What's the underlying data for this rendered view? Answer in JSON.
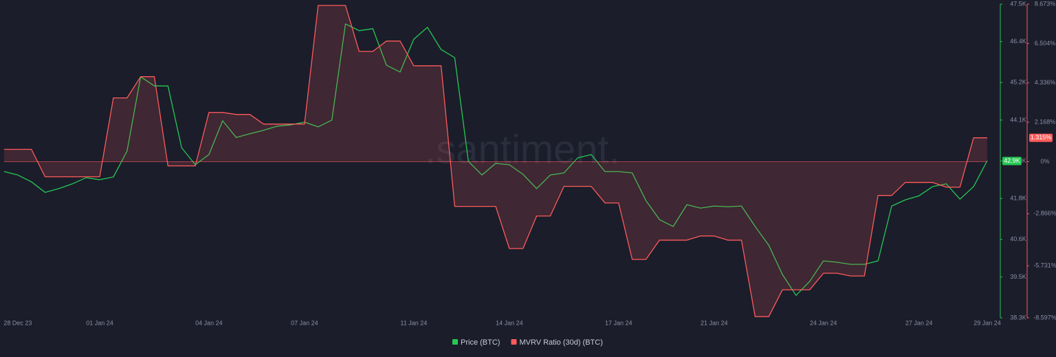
{
  "chart_data": {
    "type": "line",
    "watermark": ".santiment.",
    "categories": [
      null,
      "28 Dec 23",
      null,
      null,
      null,
      null,
      null,
      "01 Jan 24",
      null,
      null,
      null,
      null,
      null,
      null,
      null,
      "04 Jan 24",
      null,
      null,
      null,
      null,
      null,
      null,
      "07 Jan 24",
      null,
      null,
      null,
      null,
      null,
      null,
      null,
      "11 Jan 24",
      null,
      null,
      null,
      null,
      null,
      null,
      "14 Jan 24",
      null,
      null,
      null,
      null,
      null,
      null,
      null,
      "17 Jan 24",
      null,
      null,
      null,
      null,
      null,
      null,
      "21 Jan 24",
      null,
      null,
      null,
      null,
      null,
      null,
      null,
      "24 Jan 24",
      null,
      null,
      null,
      null,
      null,
      null,
      "27 Jan 24",
      null,
      null,
      null,
      null,
      "29 Jan 24"
    ],
    "series": [
      {
        "name": "Price (BTC)",
        "color": "#26c953",
        "axis": "y",
        "values": [
          42590,
          42490,
          42290,
          41980,
          42090,
          42230,
          42410,
          42350,
          42430,
          43190,
          45370,
          45100,
          45100,
          43290,
          42790,
          43090,
          44080,
          43590,
          43700,
          43800,
          43920,
          43960,
          44040,
          43900,
          44100,
          46920,
          46720,
          46780,
          45710,
          45510,
          46470,
          46820,
          46170,
          45930,
          42890,
          42490,
          42830,
          42790,
          42510,
          42090,
          42490,
          42550,
          42990,
          43090,
          42590,
          42590,
          42550,
          41740,
          41180,
          40980,
          41620,
          41520,
          41580,
          41560,
          41580,
          40980,
          40430,
          39570,
          38960,
          39370,
          39970,
          39930,
          39870,
          39870,
          39970,
          41580,
          41760,
          41880,
          42150,
          42230,
          41780,
          42150,
          42910
        ]
      },
      {
        "name": "MVRV Ratio (30d) (BTC)",
        "color": "#ff5b5b",
        "axis": "y2",
        "fill": true,
        "values": [
          0.68,
          0.68,
          0.68,
          -0.83,
          -0.83,
          -0.83,
          -0.83,
          -0.83,
          3.51,
          3.51,
          4.68,
          4.68,
          -0.23,
          -0.23,
          -0.23,
          2.71,
          2.71,
          2.6,
          2.6,
          2.07,
          2.07,
          2.07,
          2.07,
          8.6,
          8.6,
          8.6,
          6.07,
          6.07,
          6.64,
          6.64,
          5.28,
          5.28,
          5.28,
          -2.46,
          -2.46,
          -2.46,
          -2.46,
          -4.78,
          -4.78,
          -2.99,
          -2.99,
          -1.36,
          -1.36,
          -1.36,
          -2.27,
          -2.27,
          -5.38,
          -5.38,
          -4.32,
          -4.32,
          -4.32,
          -4.09,
          -4.09,
          -4.32,
          -4.32,
          -8.53,
          -8.53,
          -7.05,
          -7.05,
          -7.05,
          -6.14,
          -6.14,
          -6.29,
          -6.29,
          -1.86,
          -1.86,
          -1.14,
          -1.14,
          -1.14,
          -1.4,
          -1.4,
          1.315,
          1.315
        ]
      }
    ],
    "ylim": [
      38300,
      47500
    ],
    "yticks": [
      {
        "value": 38300,
        "label": "38.3K"
      },
      {
        "value": 39500,
        "label": "39.5K"
      },
      {
        "value": 40600,
        "label": "40.6K"
      },
      {
        "value": 41800,
        "label": "41.8K"
      },
      {
        "value": 42900,
        "label": "42.9K"
      },
      {
        "value": 44100,
        "label": "44.1K"
      },
      {
        "value": 45200,
        "label": "45.2K"
      },
      {
        "value": 46400,
        "label": "46.4K"
      },
      {
        "value": 47500,
        "label": "47.5K"
      }
    ],
    "y2lim": [
      -8.597,
      8.673
    ],
    "y2ticks": [
      {
        "value": -8.597,
        "label": "-8.597%"
      },
      {
        "value": -5.731,
        "label": "-5.731%"
      },
      {
        "value": -2.866,
        "label": "-2.866%"
      },
      {
        "value": 0,
        "label": "0%"
      },
      {
        "value": 2.168,
        "label": "2.168%"
      },
      {
        "value": 4.336,
        "label": "4.336%"
      },
      {
        "value": 6.504,
        "label": "6.504%"
      },
      {
        "value": 8.673,
        "label": "8.673%"
      }
    ],
    "annotations": [
      {
        "text": "42.9K",
        "value": 42900,
        "axis": "y"
      },
      {
        "text": "1.315%",
        "value": 1.315,
        "axis": "y2"
      }
    ],
    "grid": false
  }
}
